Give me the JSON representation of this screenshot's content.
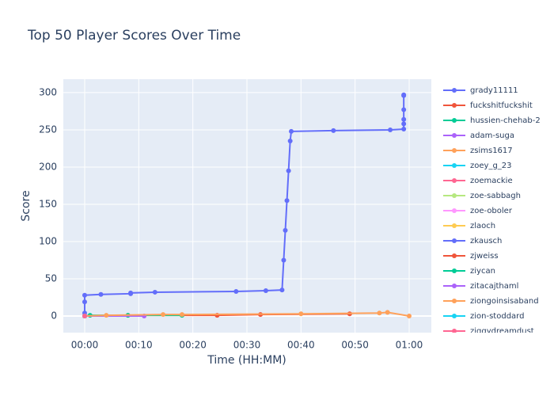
{
  "chart_data": {
    "type": "line",
    "title": "Top 50 Player Scores Over Time",
    "x_label": "Time (HH:MM)",
    "y_label": "Score",
    "xlim": [
      -3.95,
      64.1
    ],
    "ylim": [
      -22.3,
      318
    ],
    "xticks": [
      {
        "value": 0,
        "label": "00:00"
      },
      {
        "value": 10,
        "label": "00:10"
      },
      {
        "value": 20,
        "label": "00:20"
      },
      {
        "value": 30,
        "label": "00:30"
      },
      {
        "value": 40,
        "label": "00:40"
      },
      {
        "value": 50,
        "label": "00:50"
      },
      {
        "value": 60,
        "label": "01:00"
      }
    ],
    "yticks": [
      0,
      50,
      100,
      150,
      200,
      250,
      300
    ],
    "grid": true,
    "series": [
      {
        "name": "grady11111",
        "color": "#636efa",
        "x": [
          0,
          0,
          0,
          0,
          3,
          8.5,
          8.5,
          13,
          28,
          33.5,
          36.5,
          36.8,
          37.1,
          37.4,
          37.7,
          38,
          38.2,
          46,
          56.5,
          59,
          59,
          59,
          59,
          59,
          59
        ],
        "values": [
          0,
          4,
          19,
          28,
          29,
          30,
          31,
          32,
          33,
          34,
          35,
          75,
          115,
          155,
          195,
          235,
          248,
          249,
          250,
          251,
          258,
          264,
          277,
          296,
          297
        ]
      },
      {
        "name": "fuckshitfuckshit",
        "color": "#EF553B",
        "x": [
          0,
          8,
          24.5,
          32.5,
          49
        ],
        "values": [
          0,
          1,
          1,
          2,
          3
        ]
      },
      {
        "name": "hussien-chehab-2",
        "color": "#00cc96",
        "x": [
          0,
          1,
          8,
          18
        ],
        "values": [
          0,
          1,
          1,
          1
        ]
      },
      {
        "name": "adam-suga",
        "color": "#ab63fa",
        "x": [
          0,
          11
        ],
        "values": [
          0,
          0
        ]
      },
      {
        "name": "zsims1617",
        "color": "#FFA15A",
        "x": [
          0,
          4,
          14.5,
          18,
          40,
          54.5,
          56,
          60
        ],
        "values": [
          0,
          1,
          2,
          2,
          3,
          4,
          5,
          0
        ]
      },
      {
        "name": "zoey_g_23",
        "color": "#19d3f3",
        "x": [
          0
        ],
        "values": [
          0
        ]
      },
      {
        "name": "zoemackie",
        "color": "#FF6692",
        "x": [
          0
        ],
        "values": [
          0
        ]
      },
      {
        "name": "zoe-sabbagh",
        "color": "#B6E880",
        "x": [
          0
        ],
        "values": [
          0
        ]
      },
      {
        "name": "zoe-oboler",
        "color": "#FF97FF",
        "x": [
          0
        ],
        "values": [
          0
        ]
      },
      {
        "name": "zlaoch",
        "color": "#FECB52",
        "x": [
          0
        ],
        "values": [
          0
        ]
      },
      {
        "name": "zkausch",
        "color": "#636efa",
        "x": [
          0
        ],
        "values": [
          0
        ]
      },
      {
        "name": "zjweiss",
        "color": "#EF553B",
        "x": [
          0
        ],
        "values": [
          0
        ]
      },
      {
        "name": "ziycan",
        "color": "#00cc96",
        "x": [
          0
        ],
        "values": [
          0
        ]
      },
      {
        "name": "zitacajthaml",
        "color": "#ab63fa",
        "x": [
          0
        ],
        "values": [
          0
        ]
      },
      {
        "name": "ziongoinsisaband",
        "color": "#FFA15A",
        "x": [
          0
        ],
        "values": [
          0
        ]
      },
      {
        "name": "zion-stoddard",
        "color": "#19d3f3",
        "x": [
          0
        ],
        "values": [
          0
        ]
      },
      {
        "name": "ziggydreamdust",
        "color": "#FF6692",
        "x": [
          0
        ],
        "values": [
          0
        ]
      }
    ]
  }
}
